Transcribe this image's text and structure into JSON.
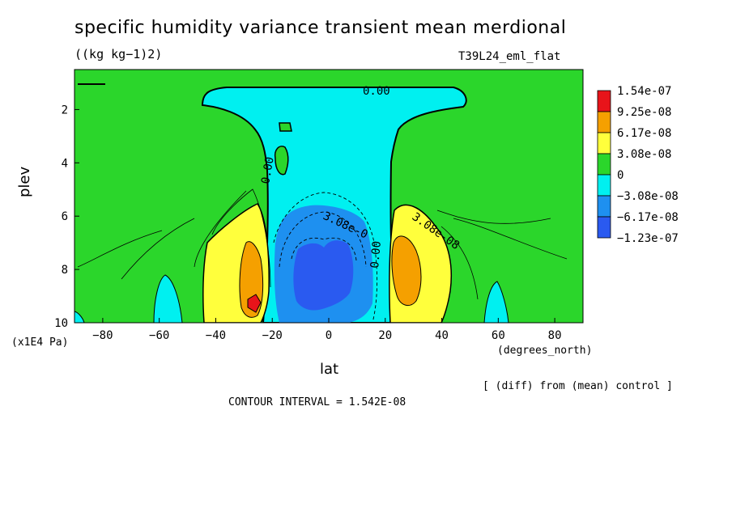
{
  "chart_data": {
    "type": "contour",
    "title": "specific humidity variance transient mean merdional",
    "units": "((kg kg−1)2)",
    "run_label": "T39L24_eml_flat",
    "xlabel": "lat",
    "xunits": "(degrees_north)",
    "ylabel": "plev",
    "yunits": "(x1E4 Pa)",
    "xlim": [
      -90,
      90
    ],
    "ylim": [
      10,
      0.5
    ],
    "xticks": [
      -80,
      -60,
      -40,
      -20,
      0,
      20,
      40,
      60,
      80
    ],
    "yticks": [
      2,
      4,
      6,
      8,
      10
    ],
    "colorbar": {
      "levels": [
        "1.54e-07",
        "9.25e-08",
        "6.17e-08",
        "3.08e-08",
        "0",
        "−3.08e-08",
        "−6.17e-08",
        "−1.23e-07"
      ],
      "colors": [
        "#e8141a",
        "#f5a000",
        "#ffff3c",
        "#2bd62b",
        "#00f0f0",
        "#1e90f0",
        "#2a5af0"
      ]
    },
    "contour_labels": [
      "0.00",
      "0.00",
      "0.00",
      "3.08e-0",
      "3.08e-08"
    ],
    "note": "[ (diff) from (mean) control ]",
    "contour_interval": "CONTOUR INTERVAL = 1.542E-08"
  }
}
